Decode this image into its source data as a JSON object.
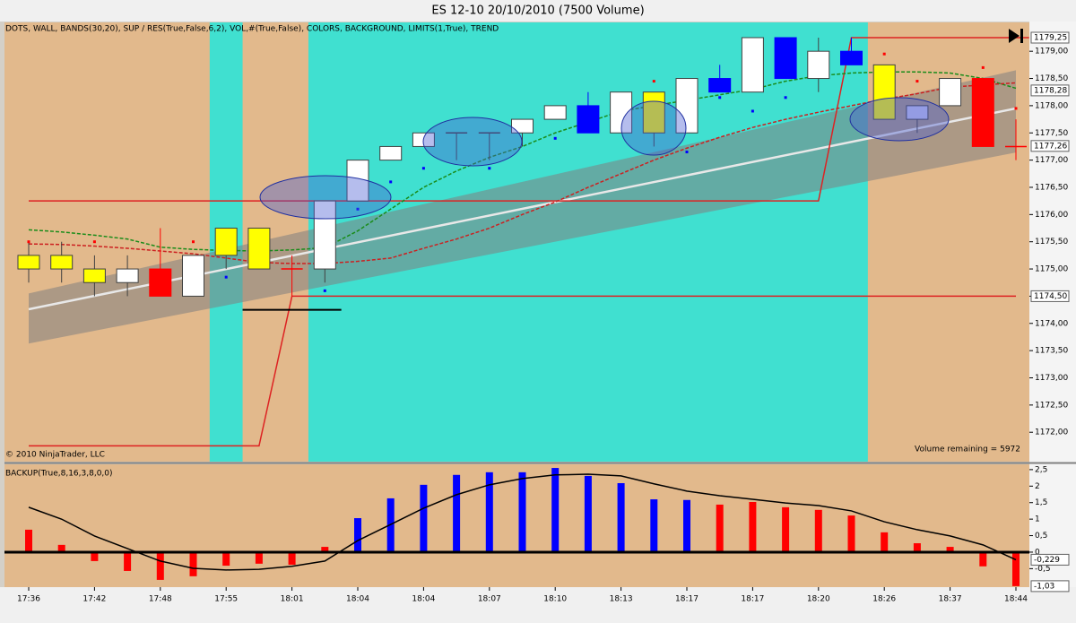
{
  "window_title": "ES 12-10  20/10/2010 (7500 Volume)",
  "chart_data": [
    {
      "type": "candlestick",
      "title": "DOTS, WALL, BANDS(30,20), SUP / RES(True,False,6,2), VOL,#(True,False), COLORS, BACKGROUND, LIMITS(1,True), TREND",
      "copyright": "© 2010 NinjaTrader, LLC",
      "annotation": "Volume remaining = 5972",
      "open": [
        1175,
        1175,
        1174.75,
        1174.75,
        1175,
        1174.5,
        1175.25,
        1175,
        1175,
        1175,
        1176.25,
        1177,
        1177.25,
        1177.5,
        1177.5,
        1177.5,
        1177.75,
        1178,
        1177.5,
        1178.25,
        1177.5,
        1178.5,
        1178.25,
        1179.25,
        1178.5,
        1179,
        1178.75,
        1178,
        1178,
        1178.5,
        1177.25
      ],
      "high": [
        1175.5,
        1175.5,
        1175.25,
        1175.25,
        1175.75,
        1175.25,
        1175.75,
        1175.75,
        1175.25,
        1176.25,
        1177,
        1177.25,
        1177.5,
        1177.5,
        1177.5,
        1177.75,
        1178,
        1178.25,
        1178.25,
        1178.25,
        1178.5,
        1178.75,
        1179.25,
        1179.25,
        1179.25,
        1179.25,
        1178.75,
        1178,
        1178.5,
        1178.5,
        1177.75
      ],
      "low": [
        1174.75,
        1174.75,
        1174.5,
        1174.5,
        1174.5,
        1174.5,
        1175,
        1175,
        1174.5,
        1174.75,
        1176.25,
        1177,
        1177.25,
        1177,
        1177,
        1177.25,
        1177.75,
        1177.5,
        1177.5,
        1177.25,
        1177.5,
        1178.25,
        1178.25,
        1178.5,
        1178.25,
        1178.75,
        1177.75,
        1177.5,
        1178,
        1177.25,
        1177
      ],
      "close": [
        1175.25,
        1175.25,
        1175,
        1175,
        1174.5,
        1175.25,
        1175.75,
        1175.75,
        1175,
        1176.25,
        1177,
        1177.25,
        1177.5,
        1177.5,
        1177.5,
        1177.75,
        1178,
        1177.5,
        1178.25,
        1177.5,
        1178.5,
        1178.25,
        1179.25,
        1178.5,
        1179,
        1178.75,
        1177.75,
        1177.75,
        1178.5,
        1177.25,
        1177.25
      ],
      "colors": [
        "#ffff00",
        "#ffff00",
        "#ffff00",
        "#ffffff",
        "#ff0000",
        "#ffffff",
        "#ffff00",
        "#ffff00",
        "#ff0000",
        "#ffffff",
        "#ffffff",
        "#ffffff",
        "#ffffff",
        "#ffffff",
        "#ffffff",
        "#ffffff",
        "#ffffff",
        "#0000ff",
        "#ffffff",
        "#ffff00",
        "#ffffff",
        "#0000ff",
        "#ffffff",
        "#0000ff",
        "#ffffff",
        "#0000ff",
        "#ffff00",
        "#c8c8f0",
        "#ffffff",
        "#ff0000",
        "#ff0000"
      ],
      "dots": [
        1175.5,
        null,
        1175.5,
        null,
        null,
        1175.5,
        1174.85,
        null,
        null,
        1174.6,
        1176.1,
        1176.6,
        1176.85,
        null,
        1176.85,
        null,
        1177.4,
        null,
        null,
        1178.45,
        1177.15,
        1178.15,
        1177.9,
        1178.15,
        null,
        null,
        1178.95,
        1178.45,
        null,
        1178.7,
        1177.95
      ],
      "dot_colors": [
        "#ff0000",
        null,
        "#ff0000",
        null,
        null,
        "#ff0000",
        "#0000ff",
        null,
        null,
        "#0000ff",
        "#0000ff",
        "#0000ff",
        "#0000ff",
        null,
        "#0000ff",
        null,
        "#0000ff",
        null,
        null,
        "#ff0000",
        "#0000ff",
        "#0000ff",
        "#0000ff",
        "#0000ff",
        null,
        null,
        "#ff0000",
        "#ff0000",
        null,
        "#ff0000",
        "#ff0000"
      ],
      "moving_averages": [
        {
          "color": "#1a8c1a",
          "style": "dashed",
          "values": [
            1175.72,
            1175.68,
            1175.62,
            1175.55,
            1175.4,
            1175.36,
            1175.34,
            1175.33,
            1175.35,
            1175.39,
            1175.7,
            1176.1,
            1176.5,
            1176.8,
            1177.05,
            1177.25,
            1177.5,
            1177.7,
            1177.9,
            1178,
            1178.1,
            1178.2,
            1178.3,
            1178.45,
            1178.55,
            1178.6,
            1178.62,
            1178.62,
            1178.6,
            1178.5,
            1178.32
          ]
        },
        {
          "color": "#cc2020",
          "style": "dashed",
          "values": [
            1175.46,
            1175.45,
            1175.42,
            1175.38,
            1175.33,
            1175.28,
            1175.2,
            1175.12,
            1175.1,
            1175.1,
            1175.14,
            1175.2,
            1175.38,
            1175.55,
            1175.75,
            1176,
            1176.23,
            1176.5,
            1176.75,
            1177,
            1177.22,
            1177.42,
            1177.6,
            1177.75,
            1177.88,
            1178,
            1178.12,
            1178.22,
            1178.34,
            1178.38,
            1178.42
          ]
        }
      ],
      "trend": {
        "x": [
          0,
          30
        ],
        "center": [
          1174.26,
          1177.95
        ],
        "upper": [
          1174.55,
          1178.65
        ],
        "lower": [
          1173.63,
          1177.14
        ],
        "color": "#e8e8e8",
        "band_color": "#808080"
      },
      "levels": [
        {
          "color": "#dd2222",
          "x": [
            0,
            24,
            25,
            30.4
          ],
          "values": [
            1176.25,
            1176.25,
            1179.25,
            1179.25
          ]
        },
        {
          "color": "#dd2222",
          "x": [
            0,
            7,
            8,
            30
          ],
          "values": [
            1171.75,
            1171.75,
            1174.5,
            1174.5
          ]
        },
        {
          "color": "#000000",
          "x": [
            6.5,
            9.5
          ],
          "values": [
            1174.25,
            1174.25
          ]
        }
      ],
      "background_color": "#e2b98c",
      "background_zones": [
        {
          "start": 5.5,
          "end": 6.5,
          "color": "#40e0d0"
        },
        {
          "start": 8.5,
          "end": 25.5,
          "color": "#40e0d0"
        }
      ],
      "ylim": [
        1171.46,
        1179.53
      ],
      "yticks": [
        {
          "value": 1172,
          "label": "1172,00"
        },
        {
          "value": 1172.5,
          "label": "1172,50"
        },
        {
          "value": 1173,
          "label": "1173,00"
        },
        {
          "value": 1173.5,
          "label": "1173,50"
        },
        {
          "value": 1174,
          "label": "1174,00"
        },
        {
          "value": 1174.5,
          "label": "1174,50"
        },
        {
          "value": 1175,
          "label": "1175,00"
        },
        {
          "value": 1175.5,
          "label": "1175,50"
        },
        {
          "value": 1176,
          "label": "1176,00"
        },
        {
          "value": 1176.5,
          "label": "1176,50"
        },
        {
          "value": 1177,
          "label": "1177,00"
        },
        {
          "value": 1177.5,
          "label": "1177,50"
        },
        {
          "value": 1178,
          "label": "1178,00"
        },
        {
          "value": 1178.5,
          "label": "1178,50"
        },
        {
          "value": 1179,
          "label": "1179,00"
        }
      ],
      "markers": [
        {
          "value": 1179.25,
          "label": "1179,25"
        },
        {
          "value": 1178.28,
          "label": "1178,28"
        },
        {
          "value": 1177.26,
          "label": "1177,26"
        },
        {
          "value": 1174.5,
          "label": "1174,50"
        }
      ]
    },
    {
      "type": "bar",
      "title": "BACKUP(True,8,16,3,8,0,0)",
      "categories": [
        "17:36",
        null,
        "17:42",
        null,
        "17:48",
        null,
        "17:55",
        null,
        "18:01",
        null,
        "18:04",
        null,
        "18:04",
        null,
        "18:07",
        null,
        "18:10",
        null,
        "18:13",
        null,
        "18:17",
        null,
        "18:17",
        null,
        "18:20",
        null,
        "18:26",
        null,
        "18:37",
        null,
        "18:44"
      ],
      "values": [
        0.68,
        0.22,
        -0.27,
        -0.57,
        -0.84,
        -0.73,
        -0.41,
        -0.35,
        -0.38,
        0.16,
        1.03,
        1.63,
        2.04,
        2.34,
        2.42,
        2.42,
        2.55,
        2.31,
        2.09,
        1.6,
        1.58,
        1.44,
        1.52,
        1.36,
        1.28,
        1.11,
        0.6,
        0.27,
        0.16,
        -0.43,
        -1.03
      ],
      "colors": [
        "#ff0000",
        "#ff0000",
        "#ff0000",
        "#ff0000",
        "#ff0000",
        "#ff0000",
        "#ff0000",
        "#ff0000",
        "#ff0000",
        "#ff0000",
        "#0000ff",
        "#0000ff",
        "#0000ff",
        "#0000ff",
        "#0000ff",
        "#0000ff",
        "#0000ff",
        "#0000ff",
        "#0000ff",
        "#0000ff",
        "#0000ff",
        "#ff0000",
        "#ff0000",
        "#ff0000",
        "#ff0000",
        "#ff0000",
        "#ff0000",
        "#ff0000",
        "#ff0000",
        "#ff0000",
        "#ff0000"
      ],
      "line": {
        "color": "#000000",
        "values": [
          1.36,
          1,
          0.49,
          0.11,
          -0.27,
          -0.49,
          -0.54,
          -0.52,
          -0.43,
          -0.27,
          0.35,
          0.84,
          1.33,
          1.74,
          2.04,
          2.23,
          2.34,
          2.36,
          2.31,
          2.07,
          1.85,
          1.71,
          1.6,
          1.49,
          1.41,
          1.25,
          0.92,
          0.68,
          0.49,
          0.22,
          -0.229
        ]
      },
      "background_color": "#e2b98c",
      "ylim": [
        -1.06,
        2.66
      ],
      "yticks": [
        {
          "value": 2.5,
          "label": "2,5"
        },
        2,
        {
          "value": 1.5,
          "label": "1,5"
        },
        1,
        {
          "value": 0.5,
          "label": "0,5"
        },
        0,
        {
          "value": -0.5,
          "label": "-0,5"
        }
      ],
      "markers": [
        {
          "value": -0.229,
          "label": "-0,229"
        },
        {
          "value": -1.03,
          "label": "-1,03"
        }
      ]
    }
  ]
}
